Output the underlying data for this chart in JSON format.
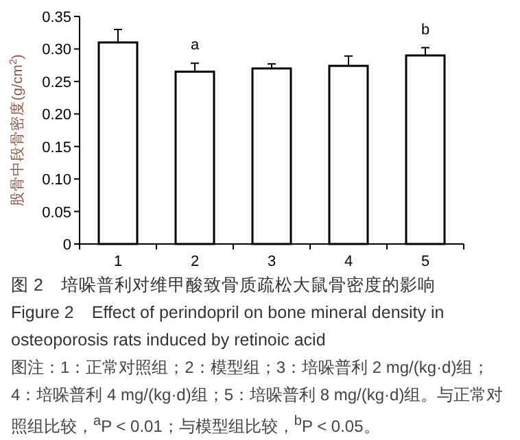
{
  "chart_data": {
    "type": "bar",
    "title": "图 2　培哚普利对维甲酸致骨质疏松大鼠骨密度的影响",
    "subtitle": "Figure 2　Effect of perindopril on bone mineral density in osteoporosis rats induced by retinoic acid",
    "ylabel": "股骨中段骨密度(g/cm$^{2}$)",
    "categories": [
      "1",
      "2",
      "3",
      "4",
      "5"
    ],
    "values": [
      0.31,
      0.265,
      0.27,
      0.274,
      0.29
    ],
    "errors": [
      [
        0.31,
        0.33
      ],
      [
        0.265,
        0.278
      ],
      [
        0.27,
        0.277
      ],
      [
        0.274,
        0.289
      ],
      [
        0.29,
        0.302
      ]
    ],
    "color": "#ffffff",
    "ylim": [
      0,
      0.35
    ],
    "yticks": [
      {
        "value": 0,
        "label": "0"
      },
      {
        "value": 0.05,
        "label": "0.05"
      },
      {
        "value": 0.1,
        "label": "0.10"
      },
      {
        "value": 0.15,
        "label": "0.15"
      },
      {
        "value": 0.2,
        "label": "0.20"
      },
      {
        "value": 0.25,
        "label": "0.25"
      },
      {
        "value": 0.3,
        "label": "0.30"
      },
      {
        "value": 0.35,
        "label": "0.35"
      }
    ],
    "annotations": [
      {
        "text": "a",
        "x": "2",
        "y": 0.278
      },
      {
        "text": "b",
        "x": "5",
        "y": 0.302
      },
      "图注：1：正常对照组；2：模型组；3：培哚普利 2 mg/(kg·d)组；4：培哚普利 4 mg/(kg·d)组；5：培哚普利 8 mg/(kg·d)组。与正常对照组比较，$^{a}$P < 0.01；与模型组比较，$^{b}$P < 0.05。"
    ]
  }
}
